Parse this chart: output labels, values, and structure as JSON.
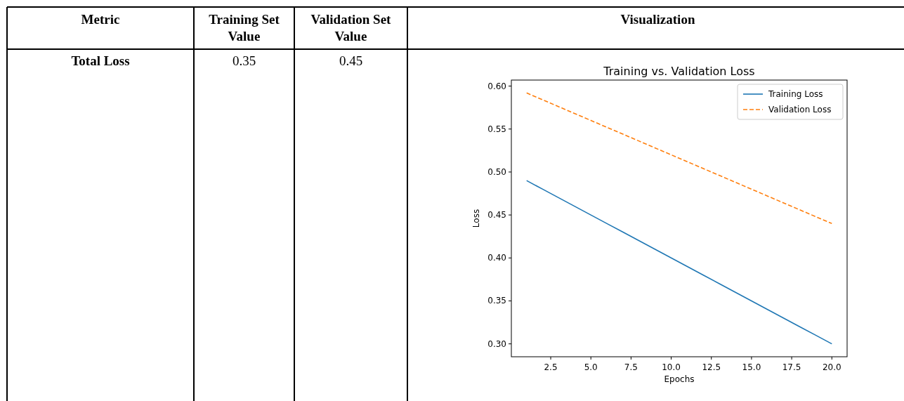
{
  "chart_data": [
    {
      "type": "other",
      "annotations": [
        "Metric",
        "Training Set Value",
        "Validation Set Value",
        "Visualization",
        "Total Loss",
        "0.35",
        "0.45"
      ]
    },
    {
      "type": "line",
      "title": "Training vs. Validation Loss",
      "xlabel": "Epochs",
      "ylabel": "Loss",
      "xlim": [
        0.05,
        20.95
      ],
      "xticks": [
        {
          "value": 2.5,
          "label": "2.5"
        },
        {
          "value": 5,
          "label": "5.0"
        },
        {
          "value": 7.5,
          "label": "7.5"
        },
        {
          "value": 10,
          "label": "10.0"
        },
        {
          "value": 12.5,
          "label": "12.5"
        },
        {
          "value": 15,
          "label": "15.0"
        },
        {
          "value": 17.5,
          "label": "17.5"
        },
        {
          "value": 20,
          "label": "20.0"
        }
      ],
      "ylim": [
        0.285,
        0.607
      ],
      "yticks": [
        {
          "value": 0.3,
          "label": "0.30"
        },
        {
          "value": 0.35,
          "label": "0.35"
        },
        {
          "value": 0.4,
          "label": "0.40"
        },
        {
          "value": 0.45,
          "label": "0.45"
        },
        {
          "value": 0.5,
          "label": "0.50"
        },
        {
          "value": 0.55,
          "label": "0.55"
        },
        {
          "value": 0.6,
          "label": "0.60"
        }
      ],
      "grid": false,
      "legend": "top right",
      "series": [
        {
          "name": "Training Loss",
          "color": "#1f77b4",
          "line_style": "solid",
          "x": [
            1,
            2,
            3,
            4,
            5,
            6,
            7,
            8,
            9,
            10,
            11,
            12,
            13,
            14,
            15,
            16,
            17,
            18,
            19,
            20
          ],
          "values": [
            0.49,
            0.48,
            0.47,
            0.46,
            0.45,
            0.44,
            0.43,
            0.42,
            0.41,
            0.4,
            0.39,
            0.38,
            0.37,
            0.36,
            0.35,
            0.34,
            0.33,
            0.32,
            0.31,
            0.3
          ]
        },
        {
          "name": "Validation Loss",
          "color": "#ff7f0e",
          "line_style": "dashed",
          "x": [
            1,
            2,
            3,
            4,
            5,
            6,
            7,
            8,
            9,
            10,
            11,
            12,
            13,
            14,
            15,
            16,
            17,
            18,
            19,
            20
          ],
          "values": [
            0.592,
            0.584,
            0.576,
            0.568,
            0.56,
            0.552,
            0.544,
            0.536,
            0.528,
            0.52,
            0.512,
            0.504,
            0.496,
            0.488,
            0.48,
            0.472,
            0.464,
            0.456,
            0.448,
            0.44
          ]
        }
      ]
    }
  ]
}
